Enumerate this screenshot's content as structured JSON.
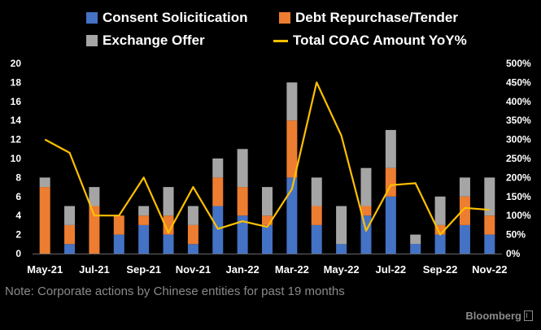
{
  "chart_data": {
    "type": "bar",
    "stacked": true,
    "categories": [
      "May-21",
      "Jun-21",
      "Jul-21",
      "Aug-21",
      "Sep-21",
      "Oct-21",
      "Nov-21",
      "Dec-21",
      "Jan-22",
      "Feb-22",
      "Mar-22",
      "Apr-22",
      "May-22",
      "Jun-22",
      "Jul-22",
      "Aug-22",
      "Sep-22",
      "Oct-22",
      "Nov-22"
    ],
    "x_tick_labels": [
      "May-21",
      "Jul-21",
      "Sep-21",
      "Nov-21",
      "Jan-22",
      "Mar-22",
      "May-22",
      "Jul-22",
      "Sep-22",
      "Nov-22"
    ],
    "series": [
      {
        "name": "Consent Solicitication",
        "color": "#4472c4",
        "axis": "left",
        "values": [
          0,
          1,
          0,
          2,
          3,
          2,
          1,
          5,
          4,
          3,
          8,
          3,
          1,
          4,
          6,
          1,
          2,
          3,
          2
        ]
      },
      {
        "name": "Debt Repurchase/Tender",
        "color": "#ed7d31",
        "axis": "left",
        "values": [
          7,
          2,
          5,
          2,
          1,
          2,
          2,
          3,
          3,
          1,
          6,
          2,
          0,
          1,
          3,
          0,
          1,
          3,
          2
        ]
      },
      {
        "name": "Exchange Offer",
        "color": "#a5a5a5",
        "axis": "left",
        "values": [
          1,
          2,
          2,
          0,
          1,
          3,
          2,
          2,
          4,
          3,
          4,
          3,
          4,
          4,
          4,
          1,
          3,
          2,
          4
        ]
      },
      {
        "name": "Total COAC Amount YoY%",
        "type": "line",
        "color": "#ffc000",
        "axis": "right",
        "values": [
          300,
          265,
          100,
          100,
          200,
          55,
          175,
          65,
          85,
          70,
          170,
          450,
          310,
          60,
          180,
          185,
          50,
          120,
          115
        ]
      }
    ],
    "y_left": {
      "min": 0,
      "max": 20,
      "ticks": [
        0,
        2,
        4,
        6,
        8,
        10,
        12,
        14,
        16,
        18,
        20
      ]
    },
    "y_right": {
      "min": 0,
      "max": 500,
      "ticks": [
        "0%",
        "50%",
        "100%",
        "150%",
        "200%",
        "250%",
        "300%",
        "350%",
        "400%",
        "450%",
        "500%"
      ]
    },
    "legend_position": "top",
    "grid": false
  },
  "note": "Note: Corporate actions by Chinese entities for past 19 months",
  "brand": "Bloomberg"
}
